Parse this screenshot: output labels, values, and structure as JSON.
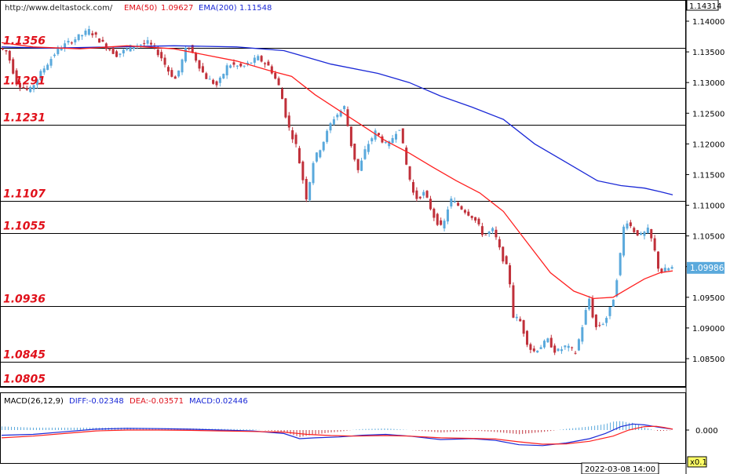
{
  "watermark": "http://www.deltastock.com/",
  "indicators": {
    "ema50_label": "EMA(50)",
    "ema50_value": "1.09627",
    "ema200_label": "EMA(200)",
    "ema200_value": "1.11548"
  },
  "macd_header": {
    "name": "MACD(26,12,9)",
    "diff": "DIFF:-0.02348",
    "dea": "DEA:-0.03571",
    "macd": "MACD:0.02446"
  },
  "timestamp": "2022-03-08 14:00",
  "zoom": "x0.1",
  "colors": {
    "up_candle": "#5aa9dc",
    "down_candle": "#c0303a",
    "ema50": "#ff2020",
    "ema200": "#1a28d6",
    "level_label": "#e0101a",
    "diff_line": "#1a28d6",
    "dea_line": "#ff2020"
  },
  "chart_data": {
    "type": "candlestick",
    "price_axis": {
      "ticks": [
        "1.14000",
        "1.13500",
        "1.13000",
        "1.12500",
        "1.12000",
        "1.11500",
        "1.11000",
        "1.10500",
        "1.10000",
        "1.09500",
        "1.09000",
        "1.08500"
      ],
      "top_label": "1.14314",
      "current_price": "1.09986"
    },
    "levels": [
      "1.1356",
      "1.1291",
      "1.1231",
      "1.1107",
      "1.1055",
      "1.0936",
      "1.0845",
      "1.0805"
    ],
    "price_path": [
      [
        0,
        1.1356
      ],
      [
        10,
        1.135
      ],
      [
        22,
        1.13
      ],
      [
        38,
        1.1285
      ],
      [
        55,
        1.132
      ],
      [
        75,
        1.1355
      ],
      [
        95,
        1.137
      ],
      [
        115,
        1.1385
      ],
      [
        135,
        1.136
      ],
      [
        150,
        1.1345
      ],
      [
        170,
        1.136
      ],
      [
        190,
        1.1365
      ],
      [
        205,
        1.1345
      ],
      [
        215,
        1.132
      ],
      [
        225,
        1.1305
      ],
      [
        240,
        1.1362
      ],
      [
        250,
        1.134
      ],
      [
        262,
        1.131
      ],
      [
        278,
        1.1295
      ],
      [
        292,
        1.133
      ],
      [
        310,
        1.1325
      ],
      [
        330,
        1.134
      ],
      [
        345,
        1.1325
      ],
      [
        358,
        1.129
      ],
      [
        368,
        1.123
      ],
      [
        378,
        1.12
      ],
      [
        386,
        1.115
      ],
      [
        392,
        1.111
      ],
      [
        400,
        1.117
      ],
      [
        412,
        1.12
      ],
      [
        425,
        1.124
      ],
      [
        440,
        1.126
      ],
      [
        450,
        1.119
      ],
      [
        458,
        1.1155
      ],
      [
        468,
        1.1195
      ],
      [
        480,
        1.122
      ],
      [
        495,
        1.1195
      ],
      [
        510,
        1.123
      ],
      [
        520,
        1.116
      ],
      [
        530,
        1.111
      ],
      [
        542,
        1.112
      ],
      [
        555,
        1.108
      ],
      [
        565,
        1.106
      ],
      [
        575,
        1.111
      ],
      [
        590,
        1.1095
      ],
      [
        605,
        1.108
      ],
      [
        618,
        1.105
      ],
      [
        630,
        1.106
      ],
      [
        640,
        1.102
      ],
      [
        650,
        1.099
      ],
      [
        655,
        1.092
      ],
      [
        665,
        1.091
      ],
      [
        672,
        1.088
      ],
      [
        680,
        1.086
      ],
      [
        690,
        1.087
      ],
      [
        700,
        1.088
      ],
      [
        710,
        1.086
      ],
      [
        722,
        1.087
      ],
      [
        735,
        1.086
      ],
      [
        745,
        1.091
      ],
      [
        752,
        1.095
      ],
      [
        760,
        1.09
      ],
      [
        772,
        1.091
      ],
      [
        782,
        1.094
      ],
      [
        790,
        1.1
      ],
      [
        798,
        1.108
      ],
      [
        808,
        1.106
      ],
      [
        818,
        1.105
      ],
      [
        828,
        1.106
      ],
      [
        835,
        1.103
      ],
      [
        842,
        1.099
      ],
      [
        850,
        1.0995
      ],
      [
        856,
        1.0998
      ]
    ],
    "ema50": [
      [
        0,
        1.1365
      ],
      [
        40,
        1.1358
      ],
      [
        100,
        1.1355
      ],
      [
        160,
        1.136
      ],
      [
        220,
        1.1355
      ],
      [
        260,
        1.1345
      ],
      [
        300,
        1.1335
      ],
      [
        340,
        1.132
      ],
      [
        370,
        1.131
      ],
      [
        400,
        1.128
      ],
      [
        430,
        1.1255
      ],
      [
        460,
        1.123
      ],
      [
        490,
        1.1205
      ],
      [
        520,
        1.1185
      ],
      [
        550,
        1.1162
      ],
      [
        580,
        1.114
      ],
      [
        610,
        1.112
      ],
      [
        640,
        1.109
      ],
      [
        670,
        1.104
      ],
      [
        700,
        1.099
      ],
      [
        730,
        1.096
      ],
      [
        755,
        1.0948
      ],
      [
        780,
        1.095
      ],
      [
        800,
        1.0965
      ],
      [
        820,
        1.098
      ],
      [
        840,
        1.099
      ],
      [
        856,
        1.0993
      ]
    ],
    "ema200": [
      [
        0,
        1.1358
      ],
      [
        60,
        1.1356
      ],
      [
        140,
        1.1358
      ],
      [
        220,
        1.136
      ],
      [
        300,
        1.1358
      ],
      [
        360,
        1.1352
      ],
      [
        420,
        1.133
      ],
      [
        480,
        1.1315
      ],
      [
        520,
        1.13
      ],
      [
        560,
        1.1278
      ],
      [
        600,
        1.126
      ],
      [
        640,
        1.124
      ],
      [
        680,
        1.12
      ],
      [
        720,
        1.117
      ],
      [
        760,
        1.114
      ],
      [
        790,
        1.1132
      ],
      [
        820,
        1.1128
      ],
      [
        840,
        1.1122
      ],
      [
        856,
        1.1117
      ]
    ],
    "macd_axis": {
      "ticks": [
        "0.000"
      ]
    },
    "diff_line": [
      [
        0,
        -0.3
      ],
      [
        40,
        -0.25
      ],
      [
        80,
        -0.1
      ],
      [
        120,
        0.05
      ],
      [
        160,
        0.1
      ],
      [
        200,
        0.08
      ],
      [
        240,
        0.05
      ],
      [
        280,
        0.0
      ],
      [
        320,
        -0.05
      ],
      [
        360,
        -0.2
      ],
      [
        380,
        -0.5
      ],
      [
        400,
        -0.45
      ],
      [
        430,
        -0.4
      ],
      [
        460,
        -0.3
      ],
      [
        490,
        -0.25
      ],
      [
        520,
        -0.35
      ],
      [
        560,
        -0.55
      ],
      [
        600,
        -0.5
      ],
      [
        630,
        -0.6
      ],
      [
        660,
        -0.85
      ],
      [
        690,
        -0.9
      ],
      [
        720,
        -0.75
      ],
      [
        750,
        -0.5
      ],
      [
        770,
        -0.2
      ],
      [
        790,
        0.2
      ],
      [
        805,
        0.35
      ],
      [
        820,
        0.3
      ],
      [
        840,
        0.15
      ],
      [
        856,
        0.05
      ]
    ],
    "dea_line": [
      [
        0,
        -0.45
      ],
      [
        40,
        -0.35
      ],
      [
        80,
        -0.2
      ],
      [
        120,
        -0.05
      ],
      [
        160,
        0.0
      ],
      [
        200,
        0.0
      ],
      [
        240,
        -0.02
      ],
      [
        280,
        -0.05
      ],
      [
        320,
        -0.08
      ],
      [
        360,
        -0.12
      ],
      [
        390,
        -0.25
      ],
      [
        420,
        -0.32
      ],
      [
        450,
        -0.35
      ],
      [
        490,
        -0.32
      ],
      [
        520,
        -0.35
      ],
      [
        560,
        -0.45
      ],
      [
        600,
        -0.48
      ],
      [
        630,
        -0.52
      ],
      [
        660,
        -0.68
      ],
      [
        690,
        -0.82
      ],
      [
        720,
        -0.8
      ],
      [
        750,
        -0.65
      ],
      [
        780,
        -0.35
      ],
      [
        800,
        0.0
      ],
      [
        820,
        0.2
      ],
      [
        835,
        0.22
      ],
      [
        845,
        0.15
      ],
      [
        856,
        0.05
      ]
    ]
  }
}
